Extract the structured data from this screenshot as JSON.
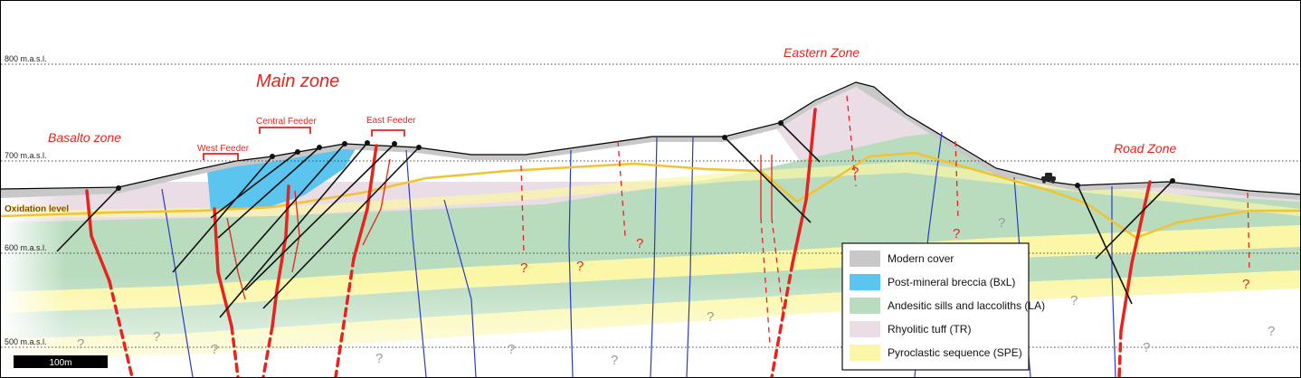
{
  "zones": {
    "main": "Main zone",
    "basalto": "Basalto zone",
    "eastern": "Eastern Zone",
    "road": "Road Zone"
  },
  "feeders": {
    "central": "Central Feeder",
    "west": "West Feeder",
    "east": "East Feeder"
  },
  "elevations": [
    "800 m.a.s.l.",
    "700 m.a.s.l.",
    "600 m.a.s.l.",
    "500 m.a.s.l."
  ],
  "oxidation_label": "Oxidation level",
  "scale_label": "100m",
  "unknown_mark": "?",
  "legend": [
    {
      "label": "Modern cover",
      "color": "#c8c8c8"
    },
    {
      "label": "Post-mineral breccia (BxL)",
      "color": "#5bc4ef"
    },
    {
      "label": "Andesitic sills and laccoliths (LA)",
      "color": "#b9dcbf"
    },
    {
      "label": "Rhyolitic tuff (TR)",
      "color": "#eadde6"
    },
    {
      "label": "Pyroclastic sequence (SPE)",
      "color": "#fbf7a6"
    }
  ],
  "colors": {
    "fault": "#e8231e",
    "contact": "#2b3bbf",
    "oxidation": "#f2c32e",
    "drillhole": "#111111"
  }
}
